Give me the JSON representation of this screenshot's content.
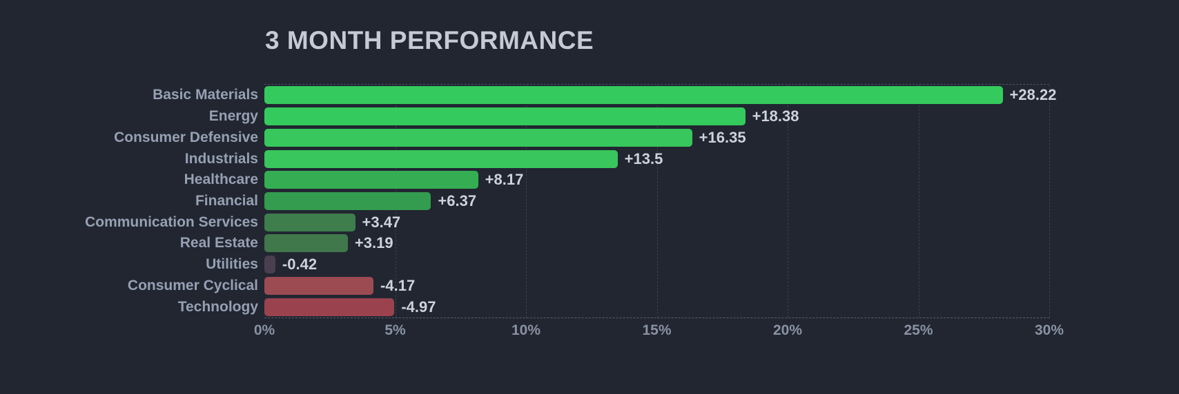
{
  "title": "3 MONTH PERFORMANCE",
  "colors": {
    "background": "#212631",
    "title_text": "#c6cad5",
    "category_label": "#97a0b3",
    "value_label": "#ced2dc",
    "axis_tick": "#8a92a3",
    "gridline": "#3b404d",
    "plot_top_border": "#4b5160",
    "plot_baseline": "#5a5f6e"
  },
  "chart_data": {
    "type": "bar",
    "orientation": "horizontal",
    "title": "3 MONTH PERFORMANCE",
    "categories": [
      "Basic Materials",
      "Energy",
      "Consumer Defensive",
      "Industrials",
      "Healthcare",
      "Financial",
      "Communication Services",
      "Real Estate",
      "Utilities",
      "Consumer Cyclical",
      "Technology"
    ],
    "values": [
      28.22,
      18.38,
      16.35,
      13.5,
      8.17,
      6.37,
      3.47,
      3.19,
      -0.42,
      -4.17,
      -4.97
    ],
    "value_labels": [
      "+28.22",
      "+18.38",
      "+16.35",
      "+13.5",
      "+8.17",
      "+6.37",
      "+3.47",
      "+3.19",
      "-0.42",
      "-4.17",
      "-4.97"
    ],
    "bar_colors": [
      "#35ca5d",
      "#35ca5d",
      "#37c75d",
      "#38c65d",
      "#35ad53",
      "#339c4e",
      "#3d7e4c",
      "#41784b",
      "#4a3f50",
      "#9d4b53",
      "#9a434e"
    ],
    "xlabel": "",
    "ylabel": "",
    "xlim": [
      0,
      30
    ],
    "x_tick_values": [
      0,
      5,
      10,
      15,
      20,
      25,
      30
    ],
    "x_tick_labels": [
      "0%",
      "5%",
      "10%",
      "15%",
      "20%",
      "25%",
      "30%"
    ],
    "grid": "dashed vertical gridlines at each x tick, dashed top and baseline borders",
    "legend": "none",
    "note": "negative values drawn rightward from 0 with bar length equal to absolute value"
  }
}
